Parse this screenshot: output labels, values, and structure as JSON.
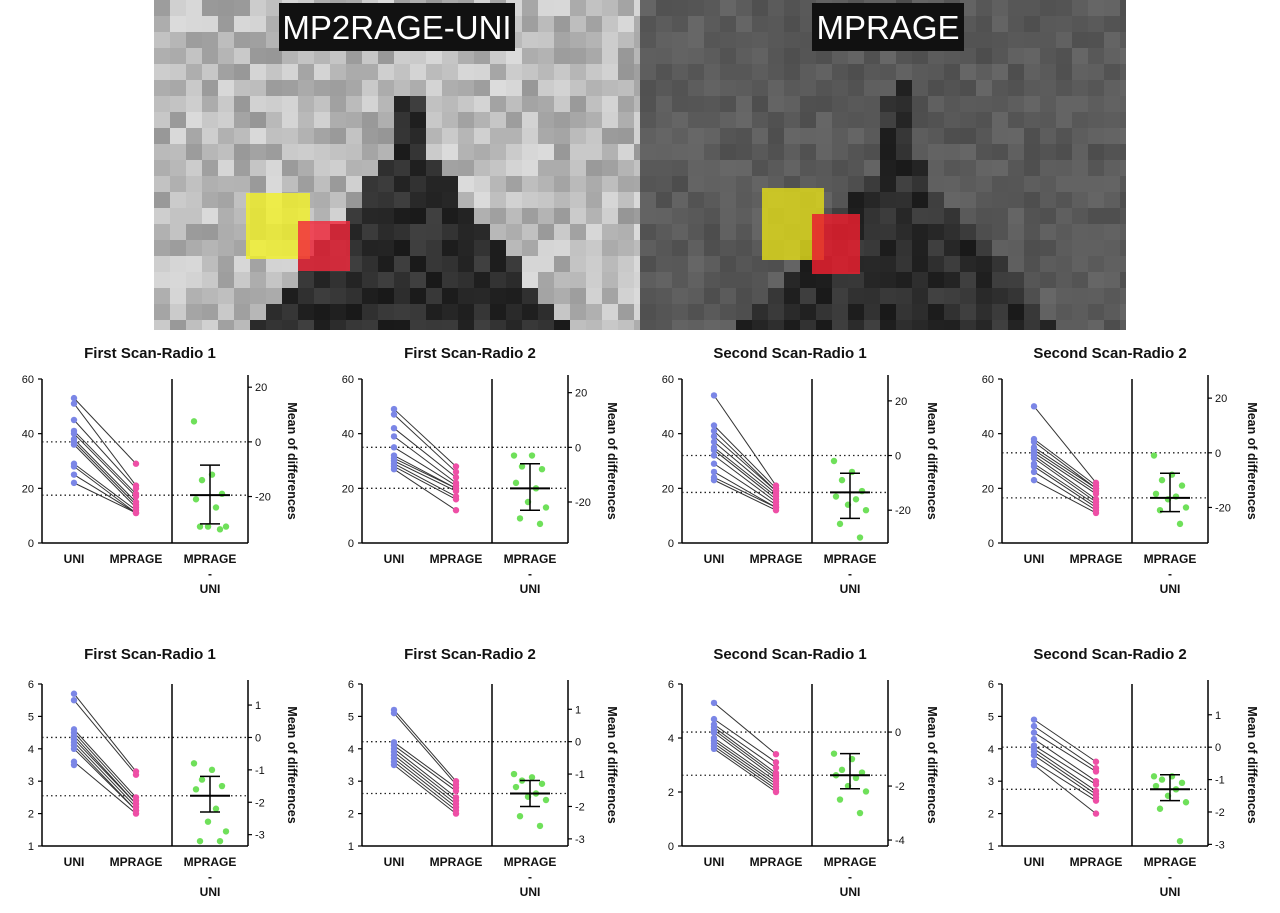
{
  "colors": {
    "uni": "#7b86e6",
    "mprage": "#ee4fa6",
    "diff": "#6fe05a",
    "roi_yellow": "#f2f02a",
    "roi_red": "#f2283c"
  },
  "panels": [
    {
      "label": "MP2RAGE-UNI"
    },
    {
      "label": "MPRAGE"
    }
  ],
  "chart_data": [
    {
      "type": "scatter",
      "title": "First Scan-Radio 1",
      "categories": [
        "UNI",
        "MPRAGE",
        "MPRAGE\n-\nUNI"
      ],
      "ylim": [
        0,
        60
      ],
      "yticks": [
        0,
        20,
        40,
        60
      ],
      "y2label": "Mean of differences",
      "y2lim": [
        -37,
        23
      ],
      "y2ticks": [
        -20,
        0,
        20
      ],
      "y2_mean": -19.5,
      "y2_ci": [
        -30,
        -8.5
      ],
      "uni": [
        53,
        51,
        45,
        41,
        40,
        38,
        37,
        36,
        29,
        28,
        25,
        22
      ],
      "mprage": [
        29,
        21,
        20,
        18,
        17,
        15,
        14,
        13,
        12,
        11,
        11,
        11
      ],
      "diff": [
        7.5,
        -12,
        -14,
        -19,
        -21,
        -24,
        -31,
        -31,
        -31,
        -32
      ]
    },
    {
      "type": "scatter",
      "title": "First Scan-Radio 2",
      "categories": [
        "UNI",
        "MPRAGE",
        "MPRAGE\n-\nUNI"
      ],
      "ylim": [
        0,
        60
      ],
      "yticks": [
        0,
        20,
        40,
        60
      ],
      "y2label": "Mean of differences",
      "y2lim": [
        -35,
        25
      ],
      "y2ticks": [
        -20,
        0,
        20
      ],
      "y2_mean": -15,
      "y2_ci": [
        -23,
        -6
      ],
      "uni": [
        49,
        47,
        42,
        39,
        35,
        32,
        31,
        30,
        29,
        28,
        27
      ],
      "mprage": [
        28,
        26,
        24,
        22,
        21,
        20,
        20,
        19,
        17,
        16,
        12
      ],
      "diff": [
        -3,
        -3,
        -7,
        -8,
        -13,
        -15,
        -20,
        -22,
        -26,
        -28
      ]
    },
    {
      "type": "scatter",
      "title": "Second Scan-Radio 1",
      "categories": [
        "UNI",
        "MPRAGE",
        "MPRAGE\n-\nUNI"
      ],
      "ylim": [
        0,
        60
      ],
      "yticks": [
        0,
        20,
        40,
        60
      ],
      "y2label": "Mean of differences",
      "y2lim": [
        -32,
        28
      ],
      "y2ticks": [
        -20,
        0,
        20
      ],
      "y2_mean": -13.5,
      "y2_ci": [
        -23,
        -6.5
      ],
      "uni": [
        54,
        43,
        41,
        39,
        37,
        35,
        34,
        32,
        29,
        26,
        24,
        23
      ],
      "mprage": [
        21,
        20,
        19,
        19,
        18,
        17,
        16,
        15,
        14,
        13,
        13,
        12
      ],
      "diff": [
        -2,
        -6,
        -9,
        -13,
        -15,
        -16,
        -18,
        -20,
        -25,
        -30
      ]
    },
    {
      "type": "scatter",
      "title": "Second Scan-Radio 2",
      "categories": [
        "UNI",
        "MPRAGE",
        "MPRAGE\n-\nUNI"
      ],
      "ylim": [
        0,
        60
      ],
      "yticks": [
        0,
        20,
        40,
        60
      ],
      "y2label": "Mean of differences",
      "y2lim": [
        -33,
        27
      ],
      "y2ticks": [
        -20,
        0,
        20
      ],
      "y2_mean": -16.5,
      "y2_ci": [
        -21.5,
        -7.5
      ],
      "uni": [
        50,
        38,
        37,
        35,
        34,
        33,
        32,
        31,
        29,
        28,
        26,
        23
      ],
      "mprage": [
        22,
        21,
        20,
        20,
        19,
        18,
        16,
        15,
        14,
        13,
        12,
        11
      ],
      "diff": [
        -1,
        -8,
        -10,
        -12,
        -15,
        -16,
        -17,
        -20,
        -21,
        -26
      ]
    },
    {
      "type": "scatter",
      "title": "First Scan-Radio 1",
      "categories": [
        "UNI",
        "MPRAGE",
        "MPRAGE\n-\nUNI"
      ],
      "ylim": [
        1,
        6
      ],
      "yticks": [
        1,
        2,
        3,
        4,
        5,
        6
      ],
      "y2label": "Mean of differences",
      "y2lim": [
        -3.35,
        1.65
      ],
      "y2ticks": [
        -3,
        -2,
        -1,
        0,
        1
      ],
      "y2_mean": -1.8,
      "y2_ci": [
        -2.3,
        -1.2
      ],
      "uni": [
        5.7,
        5.5,
        4.6,
        4.5,
        4.4,
        4.3,
        4.2,
        4.1,
        4.0,
        3.6,
        3.5
      ],
      "mprage": [
        3.3,
        3.2,
        2.5,
        2.4,
        2.3,
        2.3,
        2.2,
        2.1,
        2.1,
        2.0
      ],
      "diff": [
        -0.8,
        -1.0,
        -1.3,
        -1.5,
        -1.6,
        -2.2,
        -2.6,
        -2.9,
        -3.2,
        -3.2
      ]
    },
    {
      "type": "scatter",
      "title": "First Scan-Radio 2",
      "categories": [
        "UNI",
        "MPRAGE",
        "MPRAGE\n-\nUNI"
      ],
      "ylim": [
        1,
        6
      ],
      "yticks": [
        1,
        2,
        3,
        4,
        5,
        6
      ],
      "y2label": "Mean of differences",
      "y2lim": [
        -3.22,
        1.78
      ],
      "y2ticks": [
        -3,
        -2,
        -1,
        0,
        1
      ],
      "y2_mean": -1.6,
      "y2_ci": [
        -2.0,
        -1.2
      ],
      "uni": [
        5.2,
        5.1,
        4.2,
        4.1,
        4.0,
        3.9,
        3.8,
        3.7,
        3.6,
        3.5
      ],
      "mprage": [
        3.0,
        2.9,
        2.8,
        2.7,
        2.5,
        2.4,
        2.3,
        2.2,
        2.1,
        2.0
      ],
      "diff": [
        -1.0,
        -1.1,
        -1.2,
        -1.3,
        -1.4,
        -1.6,
        -1.7,
        -1.8,
        -2.3,
        -2.6
      ]
    },
    {
      "type": "scatter",
      "title": "Second Scan-Radio 1",
      "categories": [
        "UNI",
        "MPRAGE",
        "MPRAGE\n-\nUNI"
      ],
      "ylim": [
        0,
        6
      ],
      "yticks": [
        0,
        2,
        4,
        6
      ],
      "y2label": "Mean of differences",
      "y2lim": [
        -4.22,
        1.78
      ],
      "y2ticks": [
        -4,
        -2,
        0
      ],
      "y2_mean": -1.6,
      "y2_ci": [
        -2.1,
        -0.8
      ],
      "uni": [
        5.3,
        4.7,
        4.5,
        4.4,
        4.3,
        4.2,
        4.0,
        3.9,
        3.8,
        3.7,
        3.6
      ],
      "mprage": [
        3.4,
        3.1,
        2.9,
        2.7,
        2.6,
        2.5,
        2.4,
        2.3,
        2.2,
        2.1,
        2.0
      ],
      "diff": [
        -0.8,
        -1.0,
        -1.4,
        -1.5,
        -1.6,
        -1.7,
        -2.0,
        -2.2,
        -2.5,
        -3.0
      ]
    },
    {
      "type": "scatter",
      "title": "Second Scan-Radio 2",
      "categories": [
        "UNI",
        "MPRAGE",
        "MPRAGE\n-\nUNI"
      ],
      "ylim": [
        1,
        6
      ],
      "yticks": [
        1,
        2,
        3,
        4,
        5,
        6
      ],
      "y2label": "Mean of differences",
      "y2lim": [
        -3.05,
        1.95
      ],
      "y2ticks": [
        -3,
        -2,
        -1,
        0,
        1
      ],
      "y2_mean": -1.3,
      "y2_ci": [
        -1.65,
        -0.85
      ],
      "uni": [
        4.9,
        4.7,
        4.5,
        4.3,
        4.1,
        4.0,
        3.9,
        3.8,
        3.6,
        3.5
      ],
      "mprage": [
        3.6,
        3.4,
        3.3,
        3.0,
        2.9,
        2.7,
        2.6,
        2.5,
        2.4,
        2.0
      ],
      "diff": [
        -0.9,
        -0.9,
        -1.0,
        -1.1,
        -1.2,
        -1.3,
        -1.5,
        -1.7,
        -1.9,
        -2.9
      ]
    }
  ]
}
